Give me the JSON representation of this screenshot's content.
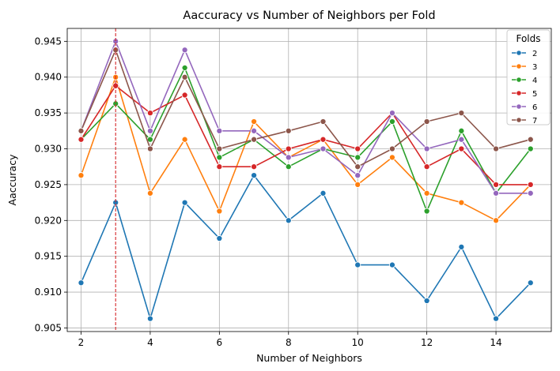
{
  "chart_data": {
    "type": "line",
    "title": "Aaccuracy vs Number of Neighbors per Fold",
    "xlabel": "Number of Neighbors",
    "ylabel": "Aaccuracy",
    "x": [
      2,
      3,
      4,
      5,
      6,
      7,
      8,
      9,
      10,
      11,
      12,
      13,
      14,
      15
    ],
    "xlim": [
      1.6,
      15.6
    ],
    "ylim": [
      0.9045,
      0.9468
    ],
    "xticks": [
      2,
      4,
      6,
      8,
      10,
      12,
      14
    ],
    "yticks": [
      "0.905",
      "0.910",
      "0.915",
      "0.920",
      "0.925",
      "0.930",
      "0.935",
      "0.940",
      "0.945"
    ],
    "grid": true,
    "vline": {
      "x": 3,
      "color": "#d62728",
      "style": "dashed"
    },
    "legend": {
      "title": "Folds",
      "placement": "top-right"
    },
    "series": [
      {
        "name": "2",
        "color": "#1f77b4",
        "values": [
          0.9113,
          0.9225,
          0.9063,
          0.9225,
          0.9175,
          0.9263,
          0.92,
          0.9238,
          0.9138,
          0.9138,
          0.9088,
          0.9163,
          0.9063,
          0.9113
        ]
      },
      {
        "name": "3",
        "color": "#ff7f0e",
        "values": [
          0.9263,
          0.94,
          0.9238,
          0.9313,
          0.9213,
          0.9338,
          0.9288,
          0.9313,
          0.925,
          0.9288,
          0.9238,
          0.9225,
          0.92,
          0.925
        ]
      },
      {
        "name": "4",
        "color": "#2ca02c",
        "values": [
          0.9313,
          0.9363,
          0.9313,
          0.9413,
          0.9288,
          0.9313,
          0.9275,
          0.93,
          0.9288,
          0.9338,
          0.9213,
          0.9325,
          0.9238,
          0.93
        ]
      },
      {
        "name": "5",
        "color": "#d62728",
        "values": [
          0.9313,
          0.9388,
          0.935,
          0.9375,
          0.9275,
          0.9275,
          0.93,
          0.9313,
          0.93,
          0.935,
          0.9275,
          0.93,
          0.925,
          0.925
        ]
      },
      {
        "name": "6",
        "color": "#9467bd",
        "values": [
          0.9325,
          0.945,
          0.9325,
          0.9438,
          0.9325,
          0.9325,
          0.9288,
          0.93,
          0.9263,
          0.935,
          0.93,
          0.9313,
          0.9238,
          0.9238
        ]
      },
      {
        "name": "7",
        "color": "#8c564b",
        "values": [
          0.9325,
          0.9438,
          0.93,
          0.94,
          0.93,
          0.9313,
          0.9325,
          0.9338,
          0.9275,
          0.93,
          0.9338,
          0.935,
          0.93,
          0.9313
        ]
      }
    ]
  }
}
